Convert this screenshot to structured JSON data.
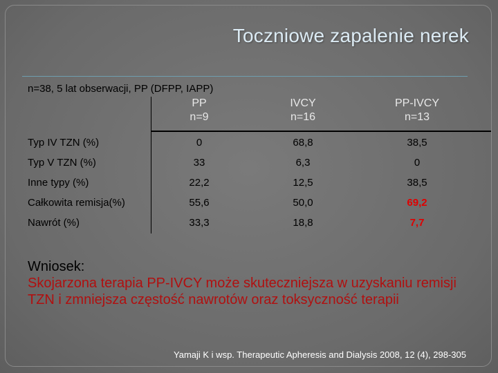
{
  "slide": {
    "title": "Toczniowe zapalenie nerek",
    "subtitle": "n=38, 5 lat obserwacji, PP (DFPP, IAPP)",
    "table": {
      "columns": [
        {
          "line1": "PP",
          "line2": "n=9"
        },
        {
          "line1": "IVCY",
          "line2": "n=16"
        },
        {
          "line1": "PP-IVCY",
          "line2": "n=13"
        }
      ],
      "rows": [
        {
          "label": "Typ IV TZN (%)",
          "values": [
            "0",
            "68,8",
            "38,5"
          ]
        },
        {
          "label": "Typ V TZN (%)",
          "values": [
            "33",
            "6,3",
            "0"
          ]
        },
        {
          "label": "Inne typy (%)",
          "values": [
            "22,2",
            "12,5",
            "38,5"
          ]
        },
        {
          "label": "Całkowita remisja(%)",
          "values": [
            "55,6",
            "50,0",
            "69,2"
          ]
        },
        {
          "label": "Nawrót (%)",
          "values": [
            "33,3",
            "18,8",
            "7,7"
          ]
        }
      ]
    },
    "conclusion_head": "Wniosek:",
    "conclusion_body": "Skojarzona terapia PP-IVCY może skuteczniejsza w uzyskaniu remisji TZN i zmniejsza częstość nawrotów oraz toksyczność terapii",
    "citation": "Yamaji K i wsp. Therapeutic Apheresis and Dialysis 2008, 12 (4), 298-305",
    "colors": {
      "background": "#6e6e6e",
      "title": "#dcebf4",
      "highlight": "#e00000",
      "conclusion": "#b01010"
    }
  }
}
